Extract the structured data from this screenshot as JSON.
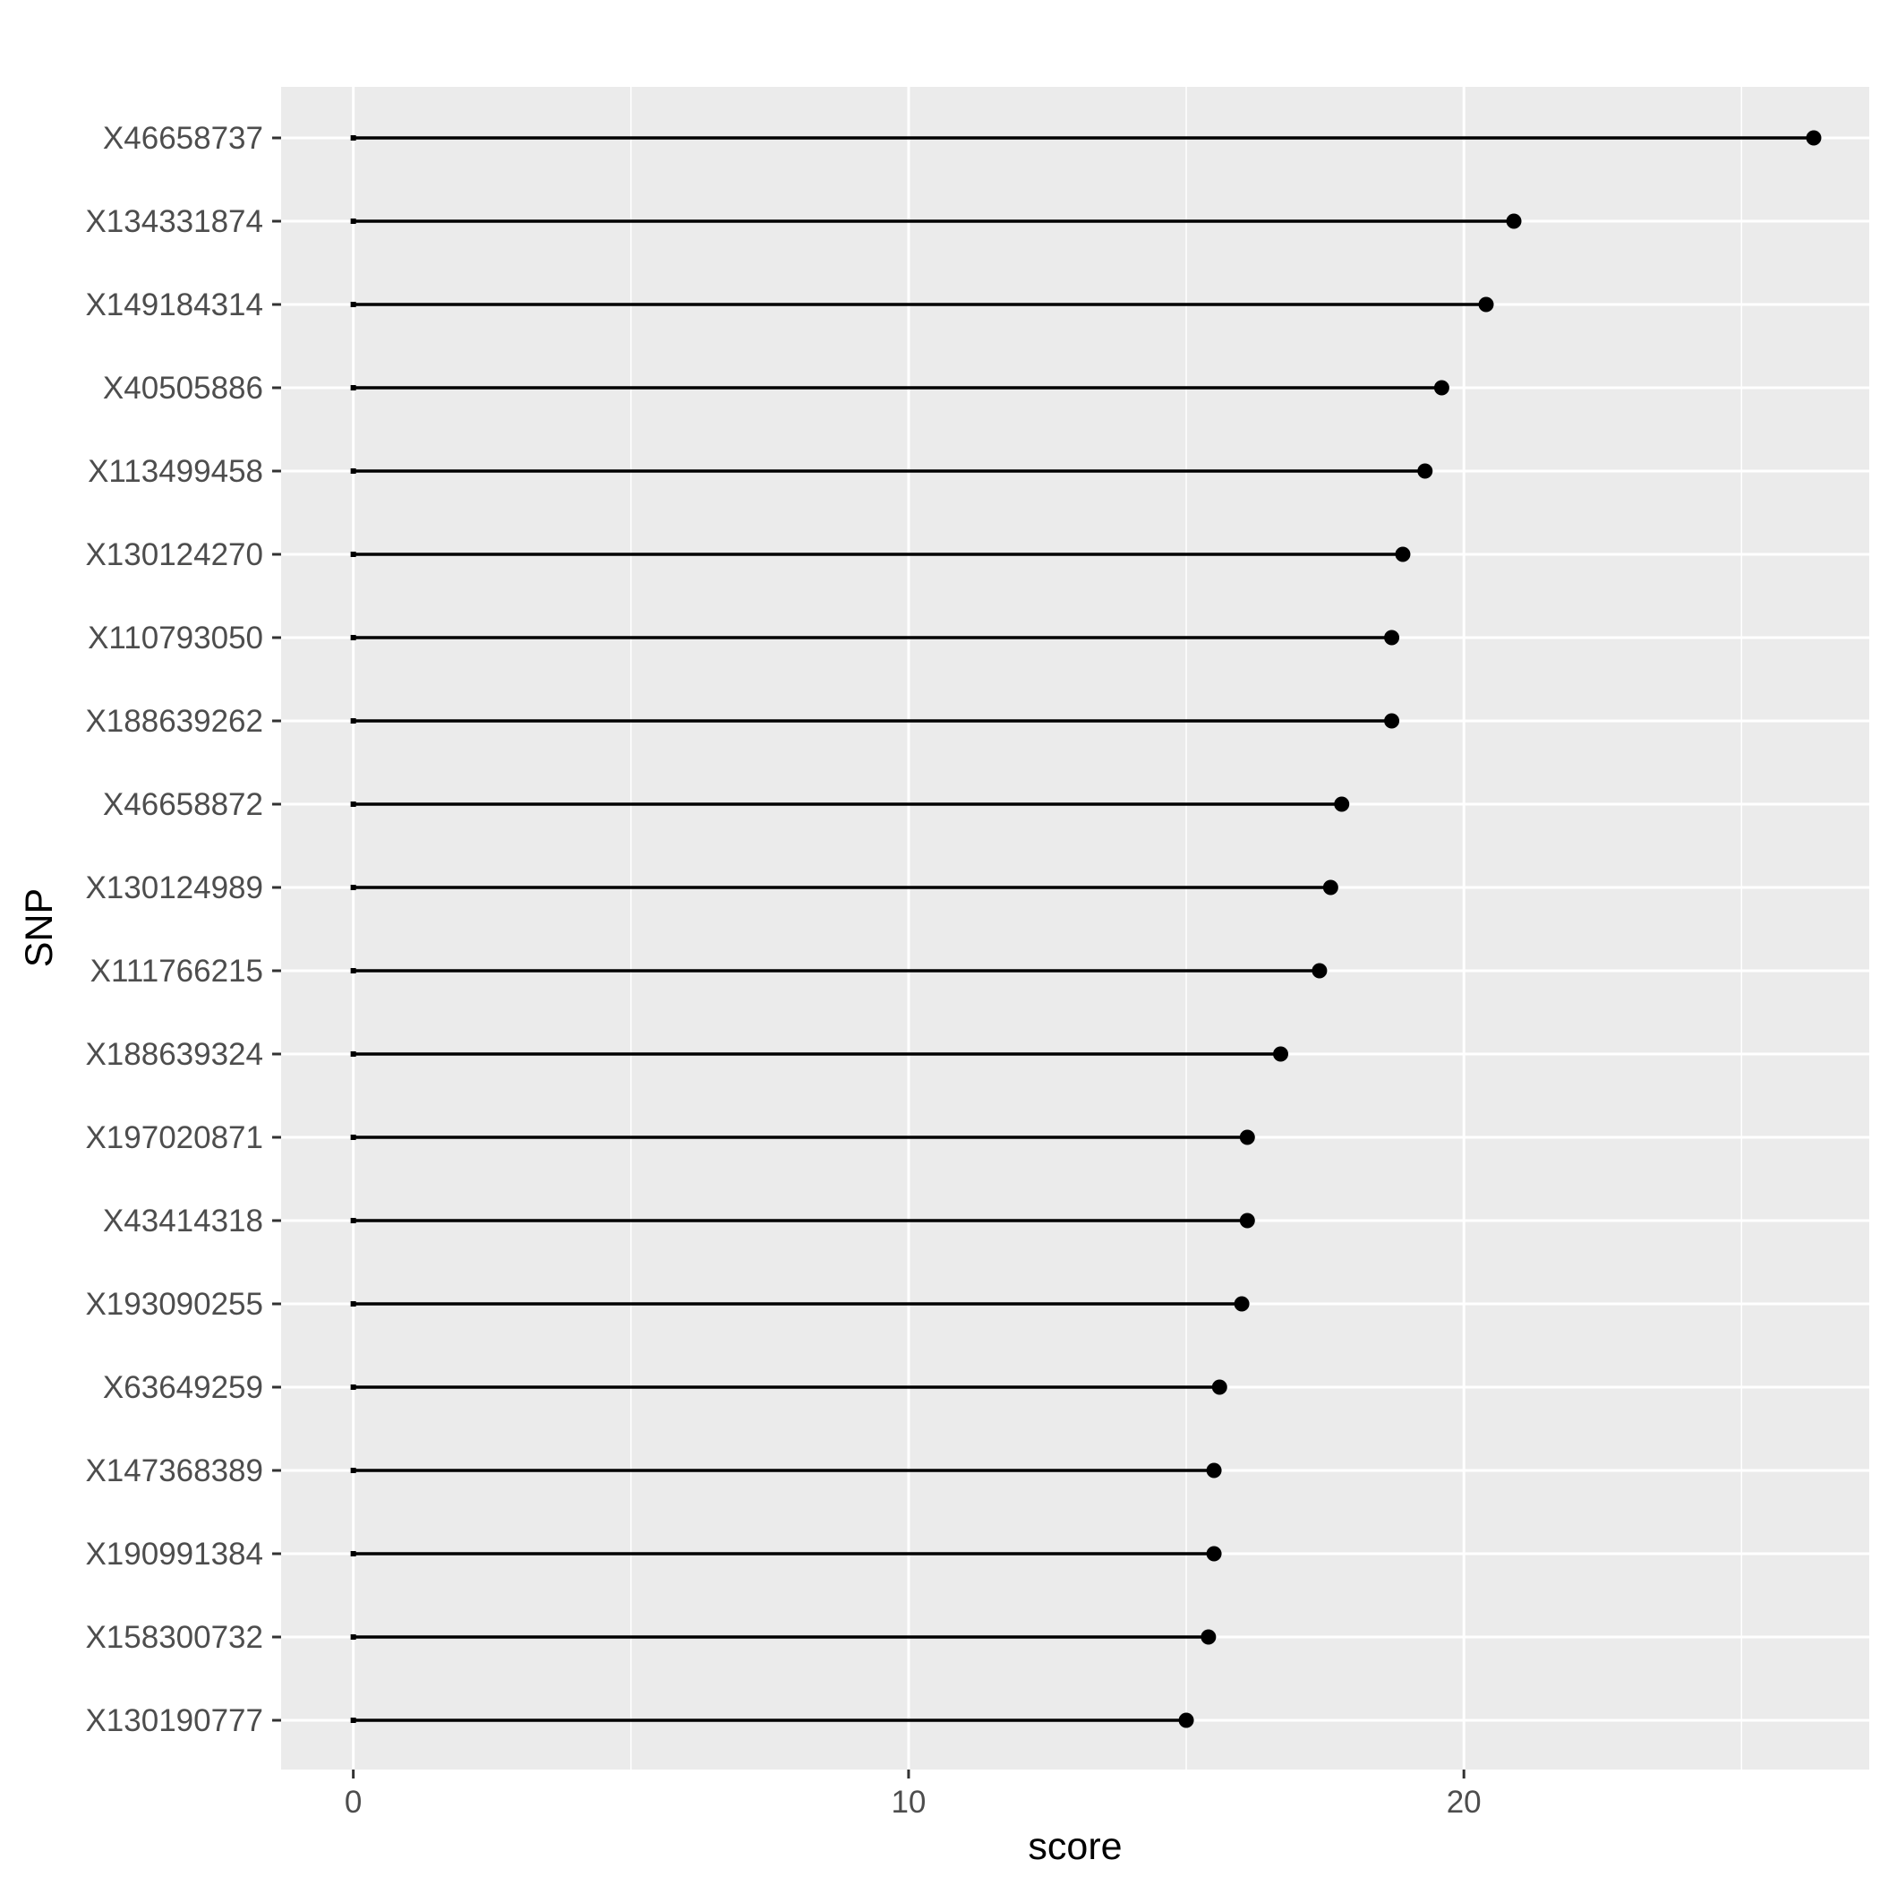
{
  "chart_data": {
    "type": "lollipop",
    "title": "",
    "xlabel": "score",
    "ylabel": "SNP",
    "xlim": [
      -1.3,
      27.3
    ],
    "x_ticks": [
      0,
      10,
      20
    ],
    "x_tick_labels": [
      "0",
      "10",
      "20"
    ],
    "grid": true,
    "categories": [
      "X46658737",
      "X134331874",
      "X149184314",
      "X40505886",
      "X113499458",
      "X130124270",
      "X110793050",
      "X188639262",
      "X46658872",
      "X130124989",
      "X111766215",
      "X188639324",
      "X197020871",
      "X43414318",
      "X193090255",
      "X63649259",
      "X147368389",
      "X190991384",
      "X158300732",
      "X130190777"
    ],
    "values": [
      26.3,
      20.9,
      20.4,
      19.6,
      19.3,
      18.9,
      18.7,
      18.7,
      17.8,
      17.6,
      17.4,
      16.7,
      16.1,
      16.1,
      16.0,
      15.6,
      15.5,
      15.5,
      15.4,
      15.0
    ]
  },
  "colors": {
    "panel_background": "#EBEBEB",
    "grid_major": "#FFFFFF",
    "segment": "#000000",
    "point": "#000000",
    "tick_text": "#4D4D4D",
    "title_text": "#000000"
  }
}
